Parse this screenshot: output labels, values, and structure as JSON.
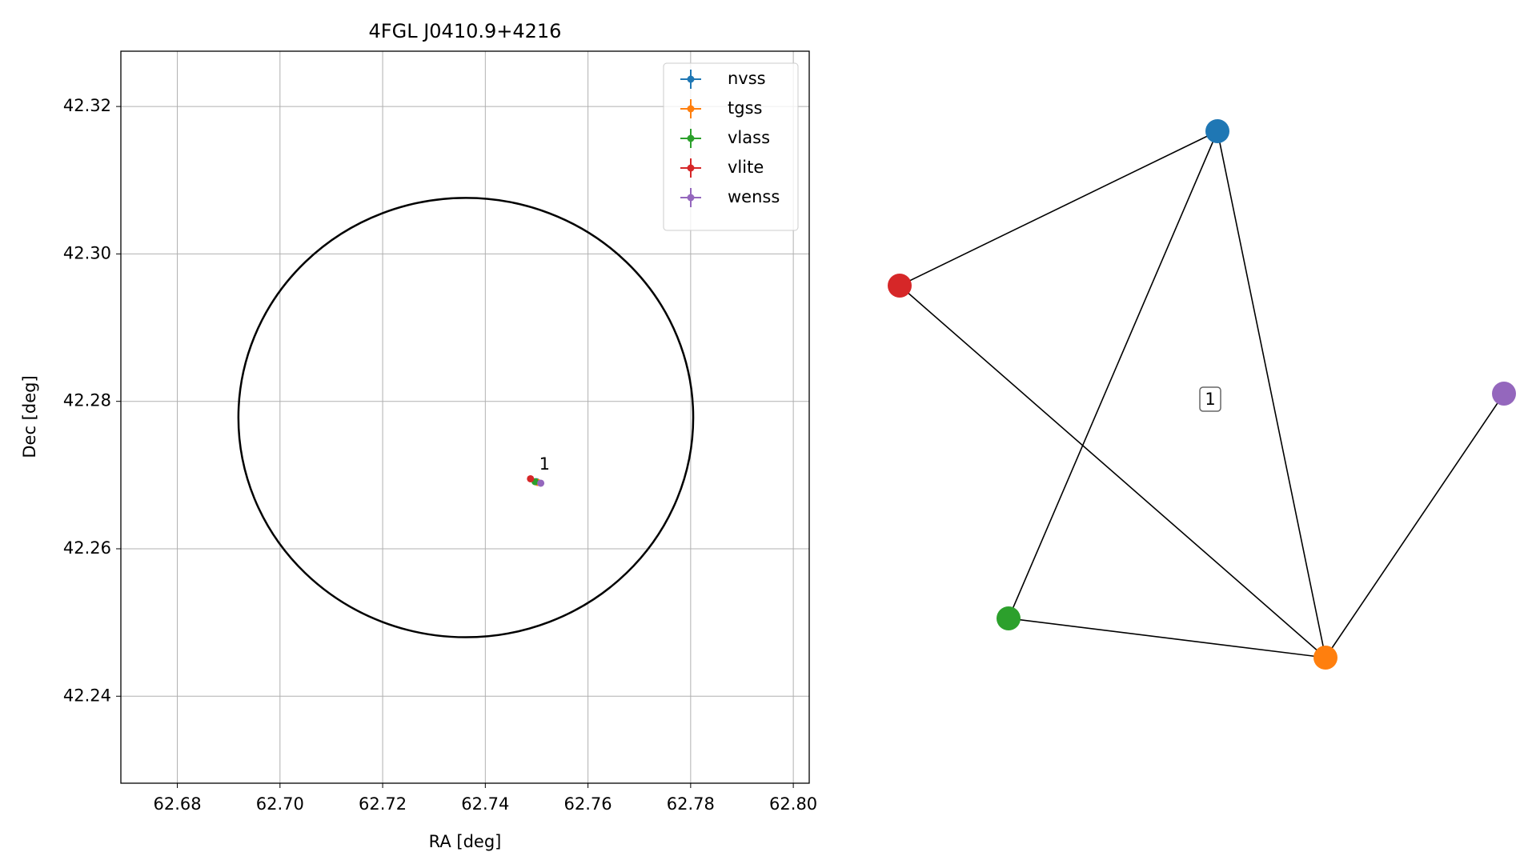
{
  "chart_data": [
    {
      "type": "scatter",
      "title": "4FGL J0410.9+4216",
      "xlabel": "RA [deg]",
      "ylabel": "Dec [deg]",
      "xlim": [
        62.669,
        62.8031
      ],
      "ylim": [
        42.2282,
        42.3275
      ],
      "xticks": [
        {
          "value": 62.68,
          "label": "62.68"
        },
        {
          "value": 62.7,
          "label": "62.70"
        },
        {
          "value": 62.72,
          "label": "62.72"
        },
        {
          "value": 62.74,
          "label": "62.74"
        },
        {
          "value": 62.76,
          "label": "62.76"
        },
        {
          "value": 62.78,
          "label": "62.78"
        },
        {
          "value": 62.8,
          "label": "62.80"
        }
      ],
      "yticks": [
        {
          "value": 42.24,
          "label": "42.24"
        },
        {
          "value": 42.26,
          "label": "42.26"
        },
        {
          "value": 42.28,
          "label": "42.28"
        },
        {
          "value": 42.3,
          "label": "42.30"
        },
        {
          "value": 42.32,
          "label": "42.32"
        }
      ],
      "grid": true,
      "legend": "upper right",
      "series": [
        {
          "name": "nvss",
          "color": "#1f77b4",
          "x": [
            62.75
          ],
          "values": [
            42.2691
          ]
        },
        {
          "name": "tgss",
          "color": "#ff7f0e",
          "x": [
            62.7502
          ],
          "values": [
            42.269
          ]
        },
        {
          "name": "vlass",
          "color": "#2ca02c",
          "x": [
            62.7497
          ],
          "values": [
            42.2691
          ]
        },
        {
          "name": "vlite",
          "color": "#d62728",
          "x": [
            62.7488
          ],
          "values": [
            42.2695
          ]
        },
        {
          "name": "wenss",
          "color": "#9467bd",
          "x": [
            62.7508
          ],
          "values": [
            42.2689
          ]
        }
      ],
      "ellipse": {
        "center": [
          62.7362,
          42.2778
        ],
        "width": 0.0886,
        "height": 0.0596,
        "color": "#000000"
      },
      "annotation": {
        "text": "1",
        "x": 62.7505,
        "y": 42.2705
      }
    },
    {
      "type": "network",
      "label": "1",
      "nodes": [
        {
          "color": "#1f77b4"
        },
        {
          "color": "#d62728"
        },
        {
          "color": "#9467bd"
        },
        {
          "color": "#2ca02c"
        },
        {
          "color": "#ff7f0e"
        }
      ],
      "edges": [
        [
          0,
          1
        ],
        [
          0,
          3
        ],
        [
          0,
          4
        ],
        [
          1,
          4
        ],
        [
          3,
          4
        ],
        [
          4,
          2
        ]
      ]
    }
  ]
}
